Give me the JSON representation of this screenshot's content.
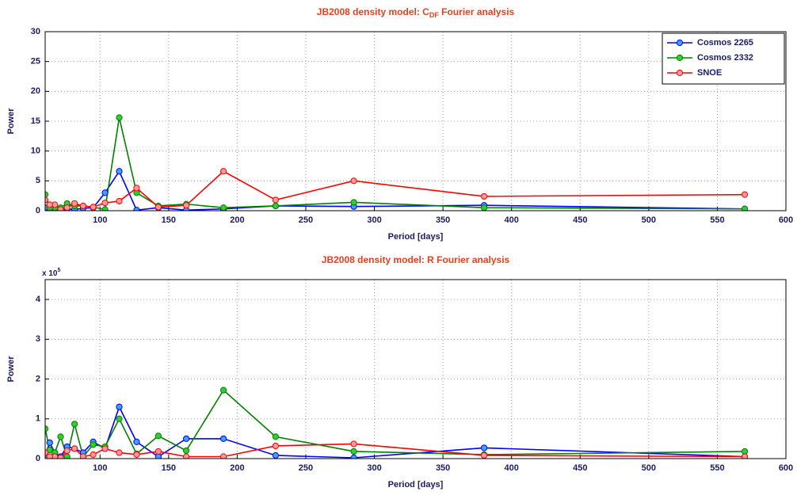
{
  "chart_data": [
    {
      "type": "line",
      "title_parts": [
        "JB2008 density model: C",
        "DF",
        " Fourier analysis"
      ],
      "x_label": "Period [days]",
      "y_label": "Power",
      "x": [
        570,
        380,
        285,
        228,
        190,
        162.86,
        142.5,
        126.67,
        114,
        103.64,
        95,
        87.69,
        81.43,
        76,
        71.25,
        67.06,
        63.33,
        60
      ],
      "xlim": [
        60,
        600
      ],
      "xticks": [
        100,
        150,
        200,
        250,
        300,
        350,
        400,
        450,
        500,
        550,
        600
      ],
      "ylim": [
        0,
        30
      ],
      "yticks": [
        0,
        5,
        10,
        15,
        20,
        25,
        30
      ],
      "grid": true,
      "legend": "upper-right",
      "series": [
        {
          "name": "Cosmos 2265",
          "color": "#0000ff",
          "marker_color": "#3fa0ff",
          "values": [
            0.3,
            0.9,
            0.7,
            0.8,
            0.3,
            0.1,
            0.5,
            0.1,
            6.6,
            3.0,
            0.5,
            0.4,
            0.2,
            0.3,
            0.2,
            0.2,
            0.3,
            0.5
          ]
        },
        {
          "name": "Cosmos 2332",
          "color": "#008000",
          "marker_color": "#33cc33",
          "values": [
            0.3,
            0.5,
            1.4,
            0.8,
            0.5,
            1.1,
            0.8,
            3.0,
            15.6,
            0.2,
            0.6,
            0.8,
            0.8,
            1.2,
            0.5,
            0.5,
            0.5,
            2.7
          ]
        },
        {
          "name": "SNOE",
          "color": "#ff0000",
          "marker_color": "#ff9a9a",
          "values": [
            2.7,
            2.4,
            5.0,
            1.8,
            6.6,
            0.9,
            0.6,
            3.8,
            1.6,
            1.3,
            0.6,
            0.8,
            1.2,
            0.5,
            0.2,
            1.0,
            1.0,
            1.8
          ]
        }
      ]
    },
    {
      "type": "line",
      "title_parts": [
        "JB2008 density model: R Fourier analysis"
      ],
      "x_label": "Period [days]",
      "y_label": "Power",
      "y_multiplier": {
        "base": "x 10",
        "exponent": "5"
      },
      "x": [
        570,
        380,
        285,
        228,
        190,
        162.86,
        142.5,
        126.67,
        114,
        103.64,
        95,
        87.69,
        81.43,
        76,
        71.25,
        67.06,
        63.33,
        60
      ],
      "xlim": [
        60,
        600
      ],
      "xticks": [
        100,
        150,
        200,
        250,
        300,
        350,
        400,
        450,
        500,
        550,
        600
      ],
      "ylim": [
        0,
        4.5
      ],
      "yticks": [
        0,
        1,
        2,
        3,
        4
      ],
      "grid": true,
      "series": [
        {
          "name": "Cosmos 2265",
          "color": "#0000ff",
          "marker_color": "#3fa0ff",
          "values": [
            0.05,
            0.27,
            0.02,
            0.08,
            0.5,
            0.5,
            0.05,
            0.42,
            1.3,
            0.25,
            0.42,
            0.15,
            0.25,
            0.3,
            0.05,
            0.15,
            0.4,
            0.1
          ]
        },
        {
          "name": "Cosmos 2332",
          "color": "#008000",
          "marker_color": "#33cc33",
          "values": [
            0.18,
            0.1,
            0.18,
            0.55,
            1.72,
            0.2,
            0.57,
            0.12,
            1.0,
            0.3,
            0.35,
            0.05,
            0.87,
            0.05,
            0.55,
            0.15,
            0.22,
            0.75
          ]
        },
        {
          "name": "SNOE",
          "color": "#ff0000",
          "marker_color": "#ff9a9a",
          "values": [
            0.05,
            0.08,
            0.37,
            0.32,
            0.05,
            0.05,
            0.18,
            0.1,
            0.15,
            0.25,
            0.1,
            0.05,
            0.25,
            0.2,
            0.02,
            0.05,
            0.05,
            0.15
          ]
        }
      ]
    }
  ]
}
